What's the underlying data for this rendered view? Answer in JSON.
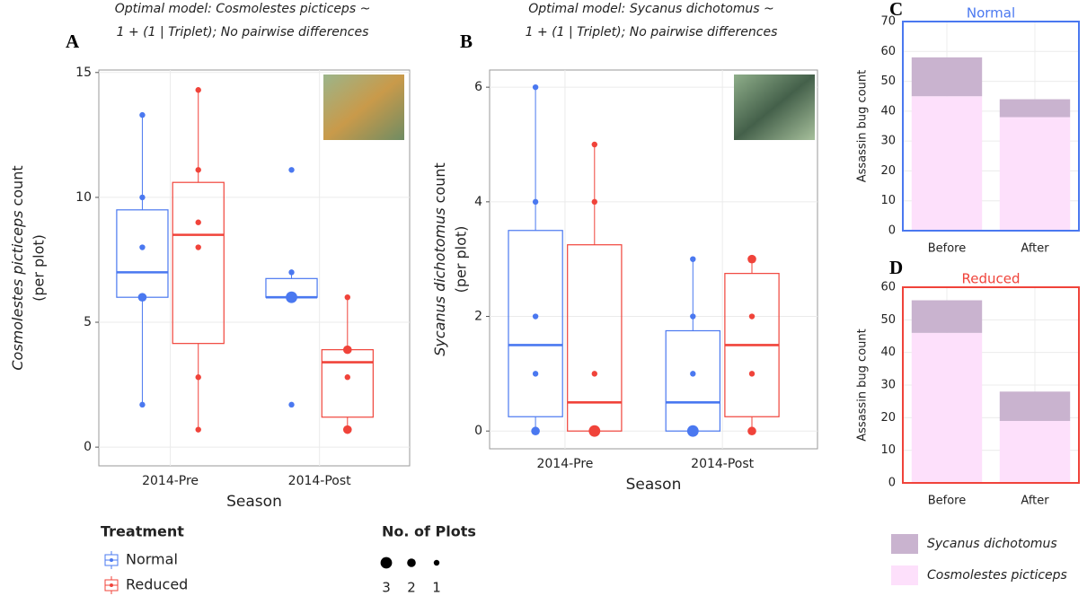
{
  "chart_data": [
    {
      "type": "box",
      "panel_label": "A",
      "subtitle": [
        "Optimal model: Cosmolestes picticeps ~",
        "1 + (1 | Triplet); No pairwise differences"
      ],
      "y_label": {
        "italic": "Cosmolestes picticeps",
        "text": "count",
        "line2": "(per plot)"
      },
      "x_label": "Season",
      "categories": [
        "2014-Pre",
        "2014-Post"
      ],
      "ylim": [
        -0.75,
        15.1
      ],
      "yticks": [
        0,
        5,
        10,
        15
      ],
      "grid": true,
      "legend_title": "Treatment",
      "size_legend": {
        "title": "No. of Plots",
        "values": [
          3,
          2,
          1
        ]
      },
      "series": [
        {
          "name": "Normal",
          "color": "#4a78f0",
          "boxes": [
            {
              "q1": 6,
              "median": 7,
              "q3": 9.5,
              "lo": 1.7,
              "hi": 13.3,
              "points": [
                [
                  13.3,
                  1
                ],
                [
                  10,
                  1
                ],
                [
                  8,
                  1
                ],
                [
                  6,
                  2
                ],
                [
                  1.7,
                  1
                ]
              ]
            },
            {
              "q1": 6,
              "median": 6,
              "q3": 6.75,
              "lo": 6,
              "hi": 7,
              "points": [
                [
                  11.1,
                  1
                ],
                [
                  7,
                  1
                ],
                [
                  6,
                  3
                ],
                [
                  1.7,
                  1
                ]
              ]
            }
          ]
        },
        {
          "name": "Reduced",
          "color": "#f0433a",
          "boxes": [
            {
              "q1": 4.15,
              "median": 8.5,
              "q3": 10.6,
              "lo": 0.7,
              "hi": 14.3,
              "points": [
                [
                  14.3,
                  1
                ],
                [
                  11.1,
                  1
                ],
                [
                  9,
                  1
                ],
                [
                  8,
                  1
                ],
                [
                  2.8,
                  1
                ],
                [
                  0.7,
                  1
                ]
              ]
            },
            {
              "q1": 1.2,
              "median": 3.4,
              "q3": 3.9,
              "lo": 0.7,
              "hi": 6,
              "points": [
                [
                  6,
                  1
                ],
                [
                  3.9,
                  2
                ],
                [
                  2.8,
                  1
                ],
                [
                  0.7,
                  2
                ]
              ]
            }
          ]
        }
      ]
    },
    {
      "type": "box",
      "panel_label": "B",
      "subtitle": [
        "Optimal model: Sycanus dichotomus ~",
        "1 + (1 | Triplet); No pairwise differences"
      ],
      "y_label": {
        "italic": "Sycanus dichotomus",
        "text": "count",
        "line2": "(per plot)"
      },
      "x_label": "Season",
      "categories": [
        "2014-Pre",
        "2014-Post"
      ],
      "ylim": [
        -0.31,
        6.3
      ],
      "yticks": [
        0,
        2,
        4,
        6
      ],
      "grid": true,
      "series": [
        {
          "color": "#4a78f0",
          "boxes": [
            {
              "q1": 0.25,
              "median": 1.5,
              "q3": 3.5,
              "lo": 0,
              "hi": 6,
              "points": [
                [
                  6,
                  1
                ],
                [
                  4,
                  1
                ],
                [
                  2,
                  1
                ],
                [
                  1,
                  1
                ],
                [
                  0,
                  2
                ]
              ]
            },
            {
              "q1": 0,
              "median": 0.5,
              "q3": 1.75,
              "lo": 0,
              "hi": 3,
              "points": [
                [
                  3,
                  1
                ],
                [
                  2,
                  1
                ],
                [
                  1,
                  1
                ],
                [
                  0,
                  3
                ]
              ]
            }
          ]
        },
        {
          "color": "#f0433a",
          "boxes": [
            {
              "q1": 0,
              "median": 0.5,
              "q3": 3.25,
              "lo": 0,
              "hi": 5,
              "points": [
                [
                  5,
                  1
                ],
                [
                  4,
                  1
                ],
                [
                  1,
                  1
                ],
                [
                  0,
                  3
                ]
              ]
            },
            {
              "q1": 0.25,
              "median": 1.5,
              "q3": 2.75,
              "lo": 0,
              "hi": 3,
              "points": [
                [
                  3,
                  2
                ],
                [
                  2,
                  1
                ],
                [
                  1,
                  1
                ],
                [
                  0,
                  2
                ]
              ]
            }
          ]
        }
      ]
    },
    {
      "type": "stacked_bar",
      "panel_label": "C",
      "title": "Normal",
      "frame_color": "#4a78f0",
      "y_label": "Assassin bug count",
      "categories": [
        "Before",
        "After"
      ],
      "ylim": [
        0,
        70
      ],
      "yticks": [
        0,
        10,
        20,
        30,
        40,
        50,
        60,
        70
      ],
      "grid": true,
      "series": [
        {
          "name": "Cosmolestes picticeps",
          "color": "#fde0fb",
          "values": [
            45,
            38
          ]
        },
        {
          "name": "Sycanus dichotomus",
          "color": "#c9b3cf",
          "values": [
            13,
            6
          ]
        }
      ]
    },
    {
      "type": "stacked_bar",
      "panel_label": "D",
      "title": "Reduced",
      "frame_color": "#f0433a",
      "y_label": "Assassin bug count",
      "categories": [
        "Before",
        "After"
      ],
      "ylim": [
        0,
        60
      ],
      "yticks": [
        0,
        10,
        20,
        30,
        40,
        50,
        60
      ],
      "grid": true,
      "series": [
        {
          "color": "#fde0fb",
          "values": [
            46,
            19
          ]
        },
        {
          "color": "#c9b3cf",
          "values": [
            10,
            9
          ]
        }
      ]
    }
  ]
}
